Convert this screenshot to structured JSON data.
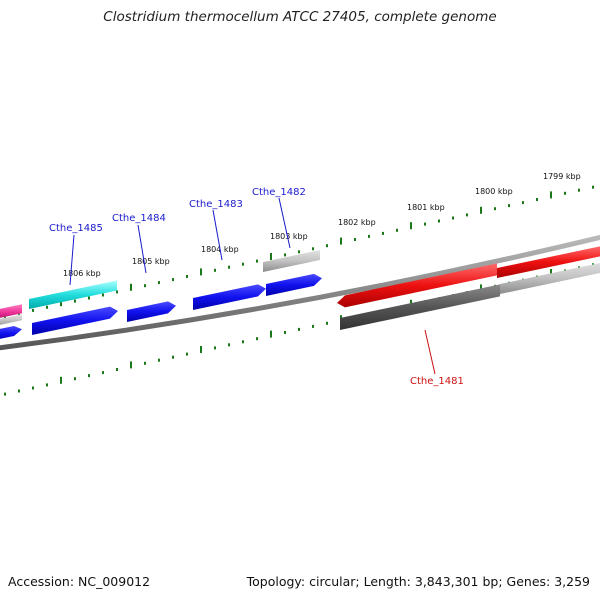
{
  "title": "Clostridium thermocellum ATCC 27405, complete genome",
  "footer": {
    "accession": "Accession: NC_009012",
    "summary": "Topology: circular; Length: 3,843,301 bp; Genes: 3,259"
  },
  "colors": {
    "backbone": "#888888",
    "tick": "#1a7a1a",
    "gene_label_blue": "#1a1acc",
    "gene_label_red": "#cc1111",
    "forward_cds": "#1111ee",
    "reverse_cds": "#ee1111",
    "pink": "#ee3399",
    "cyan": "#22dddd",
    "light_gray": "#b8b8b8",
    "dark_gray": "#555555"
  },
  "ruler": {
    "labels": [
      "1799 kbp",
      "1800 kbp",
      "1801 kbp",
      "1802 kbp",
      "1803 kbp",
      "1804 kbp",
      "1805 kbp",
      "1806 kbp"
    ]
  },
  "gene_labels": {
    "cthe_1485": "Cthe_1485",
    "cthe_1484": "Cthe_1484",
    "cthe_1483": "Cthe_1483",
    "cthe_1482": "Cthe_1482",
    "cthe_1481": "Cthe_1481"
  }
}
